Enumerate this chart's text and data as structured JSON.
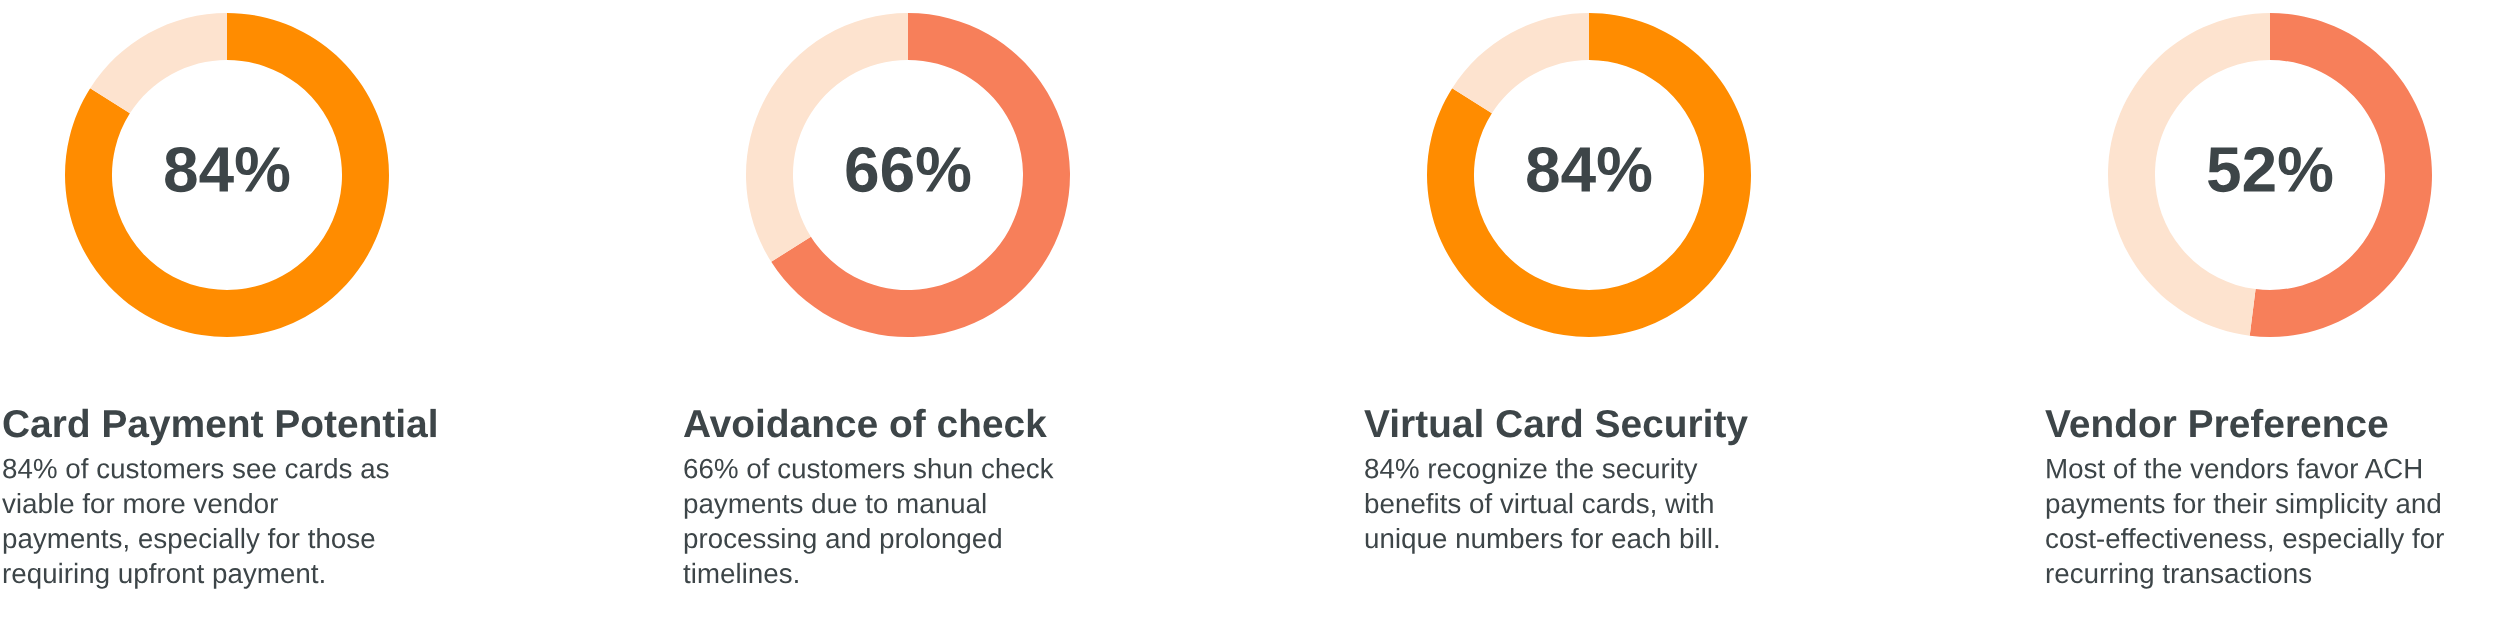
{
  "chart_data": [
    {
      "type": "donut",
      "title": "Card Payment Potential",
      "subtitle": "84% of customers see cards as\nviable for more vendor\npayments, especially for those\nrequiring upfront payment.",
      "categories": [
        null,
        null
      ],
      "values": [
        84,
        16
      ],
      "colors": [
        "#ff8c00",
        "#fde3cf"
      ],
      "value_labels": [
        "84%",
        null
      ]
    },
    {
      "type": "donut",
      "title": "Avoidance of check",
      "subtitle": "66% of customers shun check\npayments due to manual\nprocessing and prolonged\ntimelines.",
      "categories": [
        null,
        null
      ],
      "values": [
        66,
        34
      ],
      "colors": [
        "#f77f5a",
        "#fde3cf"
      ],
      "value_labels": [
        "66%",
        null
      ]
    },
    {
      "type": "donut",
      "title": "Virtual Card Security",
      "subtitle": "84% recognize the security\nbenefits of virtual cards, with\nunique numbers for each bill.",
      "categories": [
        null,
        null
      ],
      "values": [
        84,
        16
      ],
      "colors": [
        "#ff8c00",
        "#fde3cf"
      ],
      "value_labels": [
        "84%",
        null
      ]
    },
    {
      "type": "donut",
      "title": "Vendor Preference",
      "subtitle": "Most of the vendors favor ACH\npayments for their simplicity and\ncost-effectiveness, especially for\nrecurring transactions",
      "categories": [
        null,
        null
      ],
      "values": [
        52,
        48
      ],
      "colors": [
        "#f77f5a",
        "#fde3cf"
      ],
      "value_labels": [
        "52%",
        null
      ]
    }
  ]
}
